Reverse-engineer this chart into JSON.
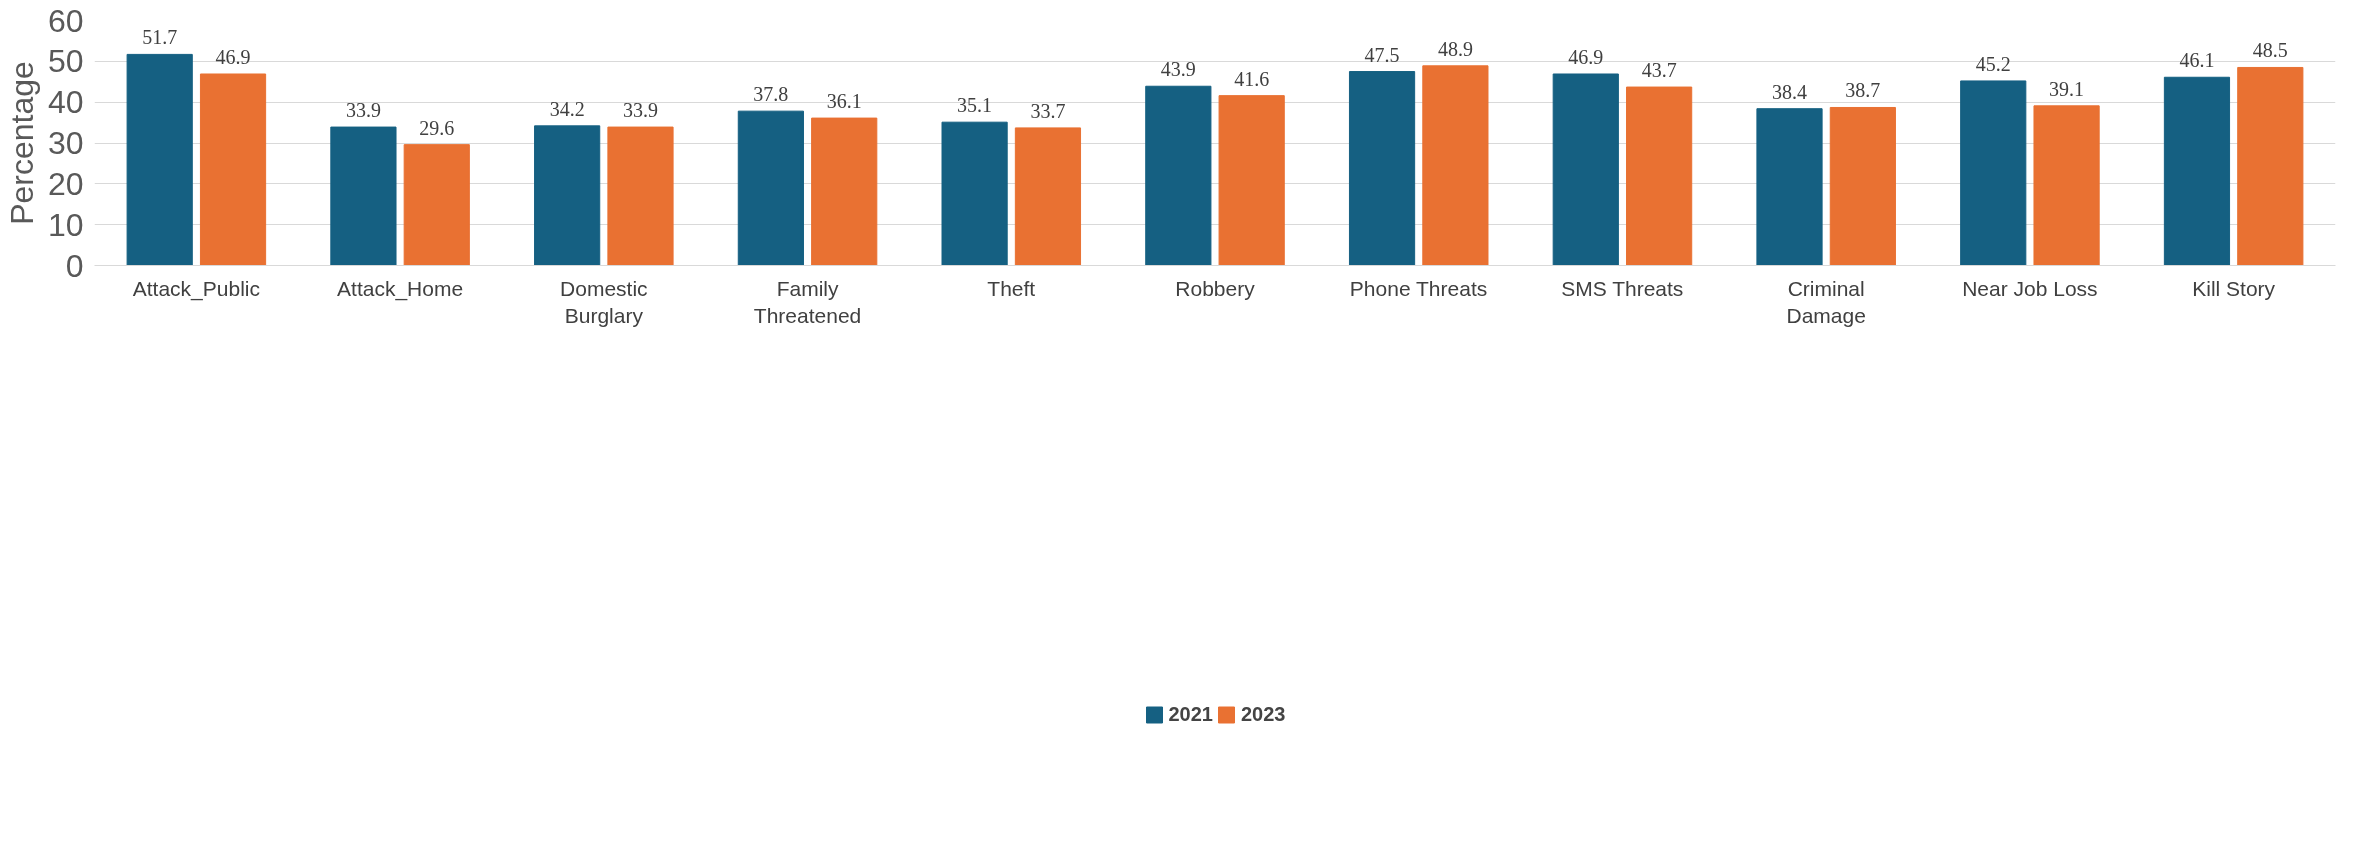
{
  "chart_data": {
    "type": "bar",
    "ylabel": "Percentage",
    "categories": [
      "Attack_Public",
      "Attack_Home",
      "Domestic Burglary",
      "Family Threatened",
      "Theft",
      "Robbery",
      "Phone Threats",
      "SMS Threats",
      "Criminal Damage",
      "Near Job Loss",
      "Kill Story"
    ],
    "series": [
      {
        "name": "2021",
        "color": "#156082",
        "values": [
          51.7,
          33.9,
          34.2,
          37.8,
          35.1,
          43.9,
          47.5,
          46.9,
          38.4,
          45.2,
          46.1
        ]
      },
      {
        "name": "2023",
        "color": "#e97132",
        "values": [
          46.9,
          29.6,
          33.9,
          36.1,
          33.7,
          41.6,
          48.9,
          43.7,
          38.7,
          39.1,
          48.5
        ]
      }
    ],
    "ylim": [
      0,
      60
    ],
    "yticks": [
      0,
      10,
      20,
      30,
      40,
      50,
      60
    ],
    "grid": "y",
    "legend": "bottom",
    "data_labels": true
  }
}
